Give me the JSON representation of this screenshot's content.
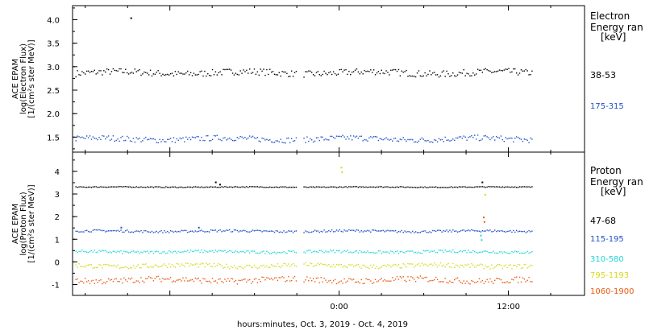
{
  "xlabel": "hours:minutes, Oct.  3, 2019 - Oct.  4, 2019",
  "xaxis": {
    "range_hours": [
      -18.9,
      17.4
    ],
    "tick_labels": [
      {
        "h": 0,
        "label": "0:00"
      },
      {
        "h": 12,
        "label": "12:00"
      }
    ],
    "minor_step_hours": 3,
    "data_gap_hours": [
      -3.05,
      -2.55
    ],
    "data_end_hours": 13.7
  },
  "chart_data": [
    {
      "type": "scatter",
      "panel": "electron",
      "ylabel": [
        "ACE EPAM",
        "log(Electron Flux)",
        "[1/(cm²s ster MeV)]"
      ],
      "ylim": [
        1.18,
        4.3
      ],
      "yticks": [
        1.5,
        2.0,
        2.5,
        3.0,
        3.5,
        4.0
      ],
      "ytick_labels": [
        "1.5",
        "2.0",
        "2.5",
        "3.0",
        "3.5",
        "4.0"
      ],
      "legend_title": [
        "Electron",
        "Energy ran",
        "[keV]"
      ],
      "series": [
        {
          "name": "38-53",
          "color": "#000000",
          "base": 2.88,
          "spread": 0.07,
          "spike": {
            "x": -14.8,
            "y": 4.05
          }
        },
        {
          "name": "175-315",
          "color": "#1f50c8",
          "base": 1.47,
          "spread": 0.06
        }
      ]
    },
    {
      "type": "scatter",
      "panel": "proton",
      "ylabel": [
        "ACE EPAM",
        "log(Proton Flux)",
        "[1/(cm²s ster MeV)]"
      ],
      "ylim": [
        -1.48,
        4.85
      ],
      "yticks": [
        -1,
        0,
        1,
        2,
        3,
        4
      ],
      "ytick_labels": [
        "-1",
        "0",
        "1",
        "2",
        "3",
        "4"
      ],
      "legend_title": [
        "Proton",
        "Energy ran",
        "[keV]"
      ],
      "series": [
        {
          "name": "47-68",
          "color": "#000000",
          "base": 3.33,
          "spread": 0.02
        },
        {
          "name": "115-195",
          "color": "#1f50c8",
          "base": 1.38,
          "spread": 0.05
        },
        {
          "name": "310-580",
          "color": "#20d8d8",
          "base": 0.47,
          "spread": 0.06
        },
        {
          "name": "795-1193",
          "color": "#d8d820",
          "base": -0.15,
          "spread": 0.1
        },
        {
          "name": "1060-1900",
          "color": "#e85a10",
          "base": -0.78,
          "spread": 0.13
        }
      ]
    }
  ]
}
